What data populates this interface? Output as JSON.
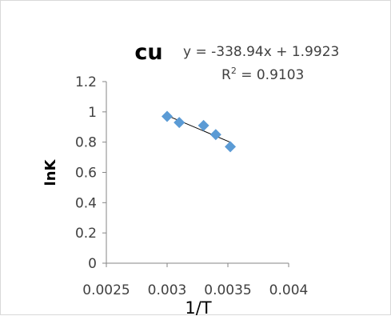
{
  "chart_data": {
    "type": "scatter",
    "title": "cu",
    "xlabel": "1/T",
    "ylabel": "lnK",
    "xlim": [
      0.0025,
      0.004
    ],
    "ylim": [
      0,
      1.2
    ],
    "x_ticks": [
      "0.0025",
      "0.003",
      "0.0035",
      "0.004"
    ],
    "y_ticks": [
      "0",
      "0.2",
      "0.4",
      "0.6",
      "0.8",
      "1",
      "1.2"
    ],
    "grid": false,
    "legend": "none",
    "marker_color": "#5b9bd5",
    "trendline_color": "#000000",
    "trendline": {
      "equation": "y = -338.94x + 1.9923",
      "r2_prefix": "R",
      "r2_power": "2",
      "r2_value": " = 0.9103",
      "slope": -338.94,
      "intercept": 1.9923
    },
    "points": [
      {
        "x": 0.003,
        "y": 0.97
      },
      {
        "x": 0.0031,
        "y": 0.93
      },
      {
        "x": 0.0033,
        "y": 0.91
      },
      {
        "x": 0.0034,
        "y": 0.85
      },
      {
        "x": 0.00352,
        "y": 0.77
      }
    ]
  }
}
